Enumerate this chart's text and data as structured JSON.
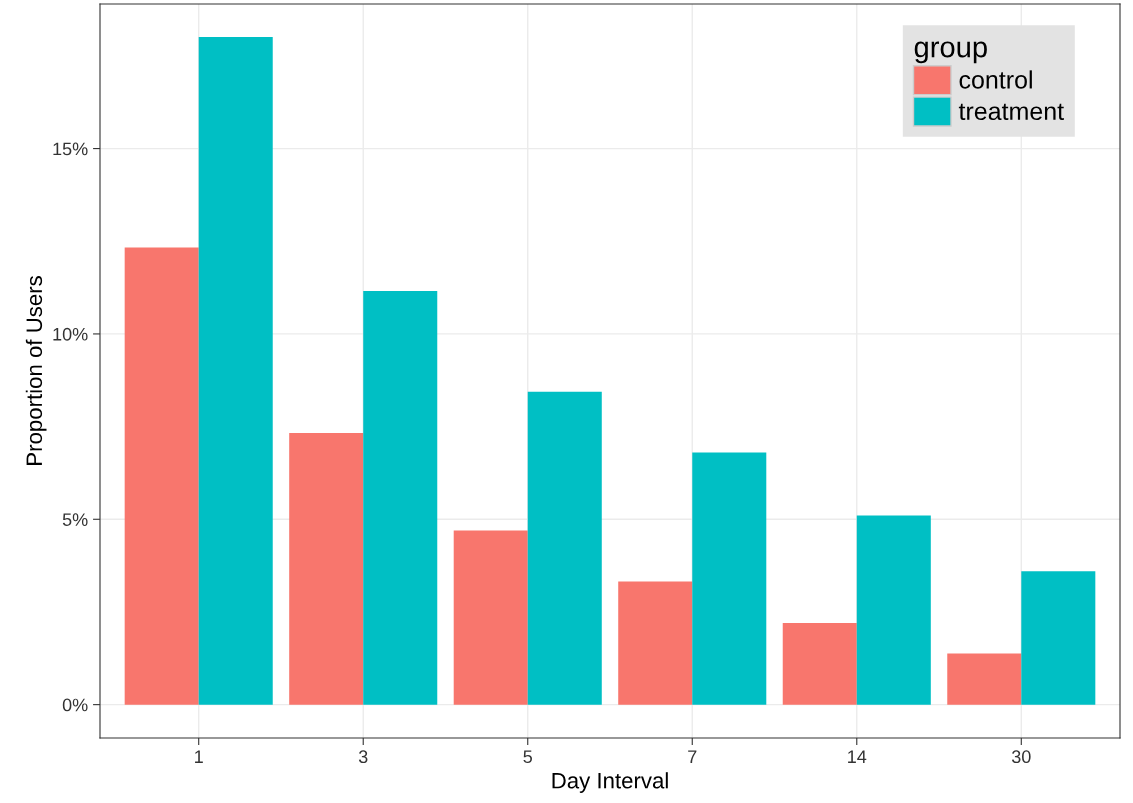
{
  "chart_data": {
    "type": "bar",
    "xlabel": "Day Interval",
    "ylabel": "Proportion of Users",
    "legend_title": "group",
    "categories": [
      "1",
      "3",
      "5",
      "7",
      "14",
      "30"
    ],
    "series": [
      {
        "name": "control",
        "color": "#f8766d",
        "values": [
          12.33,
          7.33,
          4.7,
          3.32,
          2.2,
          1.38
        ]
      },
      {
        "name": "treatment",
        "color": "#00bfc4",
        "values": [
          18.01,
          11.16,
          8.44,
          6.8,
          5.1,
          3.6
        ]
      }
    ],
    "ylim": [
      -0.9,
      18.9
    ],
    "yticks": [
      {
        "value": 0,
        "label": "0%"
      },
      {
        "value": 5,
        "label": "5%"
      },
      {
        "value": 10,
        "label": "10%"
      },
      {
        "value": 15,
        "label": "15%"
      }
    ],
    "grid": true,
    "legend": "top right"
  }
}
